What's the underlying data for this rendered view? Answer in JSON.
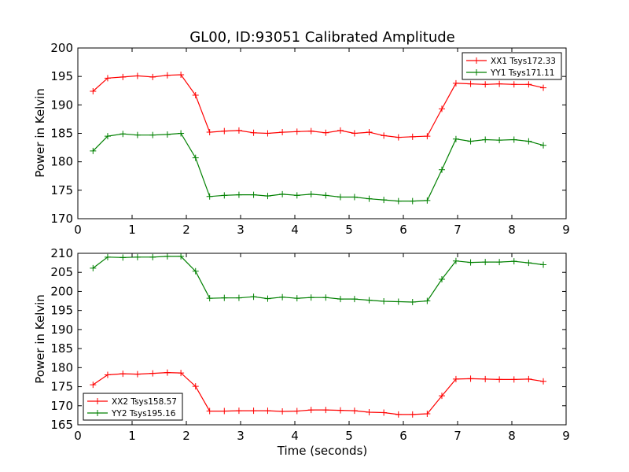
{
  "chart_data": [
    {
      "type": "line",
      "title": "GL00, ID:93051 Calibrated Amplitude",
      "xlabel": "",
      "ylabel": "Power in Kelvin",
      "xlim": [
        0,
        9
      ],
      "ylim": [
        170,
        200
      ],
      "xticks": [
        "0",
        "1",
        "2",
        "3",
        "4",
        "5",
        "6",
        "7",
        "8",
        "9"
      ],
      "yticks": [
        "170",
        "175",
        "180",
        "185",
        "190",
        "195",
        "200"
      ],
      "grid": false,
      "legend_position": "top-right",
      "x": [
        0.28,
        0.55,
        0.83,
        1.1,
        1.38,
        1.65,
        1.9,
        2.17,
        2.43,
        2.7,
        2.97,
        3.24,
        3.5,
        3.77,
        4.04,
        4.3,
        4.57,
        4.84,
        5.1,
        5.37,
        5.64,
        5.91,
        6.17,
        6.44,
        6.71,
        6.97,
        7.24,
        7.51,
        7.77,
        8.04,
        8.31,
        8.58
      ],
      "series": [
        {
          "name": "XX1 Tsys172.33",
          "color": "#ff0000",
          "values": [
            192.4,
            194.7,
            194.9,
            195.1,
            194.9,
            195.2,
            195.3,
            191.7,
            185.2,
            185.4,
            185.5,
            185.1,
            185.0,
            185.2,
            185.3,
            185.4,
            185.1,
            185.5,
            185.0,
            185.2,
            184.6,
            184.3,
            184.4,
            184.5,
            189.3,
            193.8,
            193.7,
            193.6,
            193.7,
            193.6,
            193.6,
            193.0
          ]
        },
        {
          "name": "YY1 Tsys171.11",
          "color": "#008000",
          "values": [
            181.9,
            184.5,
            184.9,
            184.7,
            184.7,
            184.8,
            185.0,
            180.7,
            173.9,
            174.1,
            174.2,
            174.2,
            174.0,
            174.3,
            174.1,
            174.3,
            174.1,
            173.8,
            173.8,
            173.5,
            173.3,
            173.1,
            173.1,
            173.2,
            178.6,
            184.0,
            183.6,
            183.9,
            183.8,
            183.9,
            183.6,
            182.9
          ]
        }
      ]
    },
    {
      "type": "line",
      "title": "",
      "xlabel": "Time (seconds)",
      "ylabel": "Power in Kelvin",
      "xlim": [
        0,
        9
      ],
      "ylim": [
        165,
        210
      ],
      "xticks": [
        "0",
        "1",
        "2",
        "3",
        "4",
        "5",
        "6",
        "7",
        "8",
        "9"
      ],
      "yticks": [
        "165",
        "170",
        "175",
        "180",
        "185",
        "190",
        "195",
        "200",
        "205",
        "210"
      ],
      "grid": false,
      "legend_position": "bottom-left",
      "x": [
        0.28,
        0.55,
        0.83,
        1.1,
        1.38,
        1.65,
        1.9,
        2.17,
        2.43,
        2.7,
        2.97,
        3.24,
        3.5,
        3.77,
        4.04,
        4.3,
        4.57,
        4.84,
        5.1,
        5.37,
        5.64,
        5.91,
        6.17,
        6.44,
        6.71,
        6.97,
        7.24,
        7.51,
        7.77,
        8.04,
        8.31,
        8.58
      ],
      "series": [
        {
          "name": "XX2 Tsys158.57",
          "color": "#ff0000",
          "values": [
            175.5,
            178.1,
            178.4,
            178.3,
            178.5,
            178.7,
            178.6,
            175.1,
            168.6,
            168.6,
            168.7,
            168.7,
            168.7,
            168.5,
            168.6,
            168.9,
            168.9,
            168.8,
            168.7,
            168.3,
            168.2,
            167.7,
            167.7,
            167.9,
            172.6,
            177.0,
            177.1,
            177.0,
            176.9,
            176.9,
            177.0,
            176.4
          ]
        },
        {
          "name": "YY2 Tsys195.16",
          "color": "#008000",
          "values": [
            206.1,
            209.0,
            208.9,
            209.0,
            209.0,
            209.2,
            209.2,
            205.3,
            198.2,
            198.3,
            198.3,
            198.6,
            198.1,
            198.5,
            198.2,
            198.4,
            198.4,
            198.0,
            198.0,
            197.7,
            197.4,
            197.3,
            197.2,
            197.5,
            203.2,
            208.0,
            207.6,
            207.7,
            207.7,
            207.9,
            207.5,
            207.0
          ]
        }
      ]
    }
  ]
}
